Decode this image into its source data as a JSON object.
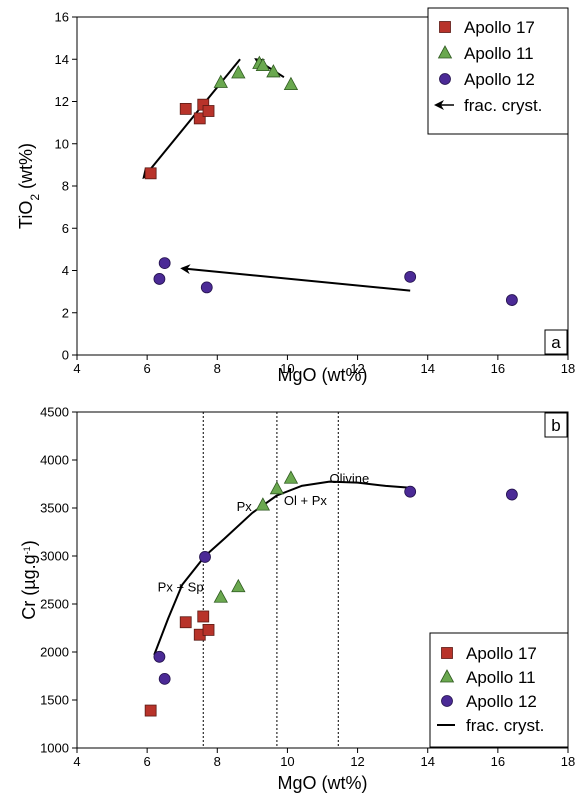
{
  "chart_data": [
    {
      "type": "scatter",
      "panel_label": "a",
      "xlabel": "MgO (wt%)",
      "ylabel": "TiO2 (wt%)",
      "ylabel_main": "TiO",
      "ylabel_sub": "2",
      "ylabel_unit": " (wt%)",
      "xlim": [
        4,
        18
      ],
      "ylim": [
        0,
        16
      ],
      "x_ticks": [
        "4",
        "6",
        "8",
        "10",
        "12",
        "14",
        "16",
        "18"
      ],
      "y_ticks": [
        "0",
        "2",
        "4",
        "6",
        "8",
        "10",
        "12",
        "14",
        "16"
      ],
      "legend_position": "top-right",
      "legend": [
        "Apollo 17",
        "Apollo 11",
        "Apollo 12",
        "frac. cryst."
      ],
      "series": [
        {
          "name": "Apollo 17",
          "marker": "square",
          "color": "#b8332a",
          "x": [
            6.1,
            7.1,
            7.5,
            7.6,
            7.75
          ],
          "y": [
            8.6,
            11.65,
            11.2,
            11.85,
            11.55
          ]
        },
        {
          "name": "Apollo 11",
          "marker": "triangle",
          "color": "#6aa84f",
          "x": [
            8.1,
            8.6,
            9.2,
            9.3,
            9.6,
            10.1
          ],
          "y": [
            12.9,
            13.35,
            13.8,
            13.7,
            13.4,
            12.8
          ]
        },
        {
          "name": "Apollo 12",
          "marker": "circle",
          "color": "#4b2a96",
          "x": [
            6.35,
            6.5,
            7.7,
            13.5,
            16.4
          ],
          "y": [
            3.6,
            4.35,
            3.2,
            3.7,
            2.6
          ]
        }
      ],
      "arrows": [
        {
          "name": "frac. cryst.",
          "from": [
            8.65,
            14.0
          ],
          "to": [
            5.9,
            8.4
          ]
        },
        {
          "name": "frac. cryst.",
          "from": [
            9.9,
            13.15
          ],
          "to": [
            9.1,
            14.0
          ]
        },
        {
          "name": "frac. cryst.",
          "from": [
            13.5,
            3.05
          ],
          "to": [
            7.0,
            4.1
          ]
        }
      ]
    },
    {
      "type": "scatter",
      "panel_label": "b",
      "xlabel": "MgO (wt%)",
      "ylabel": "Cr (µg.g-1)",
      "ylabel_main": "Cr (µg.g",
      "ylabel_sup": "-1",
      "ylabel_end": ")",
      "xlim": [
        4,
        18
      ],
      "ylim": [
        1000,
        4500
      ],
      "x_ticks": [
        "4",
        "6",
        "8",
        "10",
        "12",
        "14",
        "16",
        "18"
      ],
      "y_ticks": [
        "1000",
        "1500",
        "2000",
        "2500",
        "3000",
        "3500",
        "4000",
        "4500"
      ],
      "legend_position": "bottom-right",
      "legend": [
        "Apollo 17",
        "Apollo 11",
        "Apollo 12",
        "frac. cryst."
      ],
      "series": [
        {
          "name": "Apollo 17",
          "marker": "square",
          "color": "#b8332a",
          "x": [
            6.1,
            7.1,
            7.5,
            7.6,
            7.75
          ],
          "y": [
            1390,
            2310,
            2180,
            2370,
            2230
          ]
        },
        {
          "name": "Apollo 11",
          "marker": "triangle",
          "color": "#6aa84f",
          "x": [
            8.1,
            8.6,
            9.3,
            9.7,
            10.1
          ],
          "y": [
            2570,
            2680,
            3530,
            3700,
            3810
          ]
        },
        {
          "name": "Apollo 12",
          "marker": "circle",
          "color": "#4b2a96",
          "x": [
            6.35,
            6.5,
            7.65,
            13.5,
            16.4
          ],
          "y": [
            1950,
            1720,
            2990,
            3670,
            3640
          ]
        }
      ],
      "curve": {
        "name": "frac. cryst.",
        "x": [
          6.2,
          6.6,
          7.0,
          7.65,
          8.2,
          9.0,
          9.7,
          10.4,
          11.2,
          12.0,
          12.8,
          13.5
        ],
        "y": [
          1970,
          2350,
          2700,
          3000,
          3180,
          3450,
          3630,
          3730,
          3775,
          3765,
          3730,
          3710
        ]
      },
      "vlines_x": [
        7.6,
        9.7,
        11.45
      ],
      "annotations": [
        {
          "text": "Px + Sp",
          "x": 6.3,
          "y": 2630
        },
        {
          "text": "Px",
          "x": 8.55,
          "y": 3470
        },
        {
          "text": "Ol + Px",
          "x": 9.9,
          "y": 3530
        },
        {
          "text": "Olivine",
          "x": 11.2,
          "y": 3760
        }
      ]
    }
  ]
}
